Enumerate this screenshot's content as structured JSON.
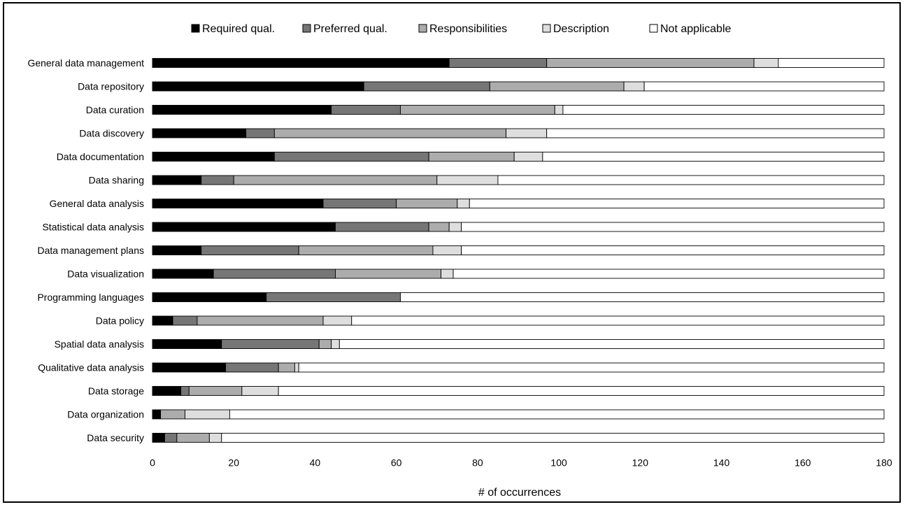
{
  "chart_data": {
    "type": "bar",
    "orientation": "horizontal",
    "stacked": true,
    "categories": [
      "General data management",
      "Data repository",
      "Data curation",
      "Data discovery",
      "Data documentation",
      "Data sharing",
      "General data analysis",
      "Statistical data analysis",
      "Data management plans",
      "Data visualization",
      "Programming languages",
      "Data policy",
      "Spatial data analysis",
      "Qualitative data analysis",
      "Data storage",
      "Data organization",
      "Data security"
    ],
    "series": [
      {
        "name": "Required qual.",
        "color": "#000000",
        "values": [
          73,
          52,
          44,
          23,
          30,
          12,
          42,
          45,
          12,
          15,
          28,
          5,
          17,
          18,
          7,
          2,
          3
        ]
      },
      {
        "name": "Preferred qual.",
        "color": "#767676",
        "values": [
          24,
          31,
          17,
          7,
          38,
          8,
          18,
          23,
          24,
          30,
          33,
          6,
          24,
          13,
          2,
          0,
          3
        ]
      },
      {
        "name": "Responsibilities",
        "color": "#acacac",
        "values": [
          51,
          33,
          38,
          57,
          21,
          50,
          15,
          5,
          33,
          26,
          0,
          31,
          3,
          4,
          13,
          6,
          8
        ]
      },
      {
        "name": "Description",
        "color": "#dedede",
        "values": [
          6,
          5,
          2,
          10,
          7,
          15,
          3,
          3,
          7,
          3,
          0,
          7,
          2,
          1,
          9,
          11,
          3
        ]
      },
      {
        "name": "Not applicable",
        "color": "#ffffff",
        "values": [
          26,
          59,
          79,
          83,
          84,
          95,
          102,
          104,
          104,
          106,
          119,
          131,
          134,
          144,
          149,
          161,
          163
        ]
      }
    ],
    "xlabel": "# of occurrences",
    "ylabel": "",
    "xlim": [
      0,
      180
    ],
    "xticks": [
      0,
      20,
      40,
      60,
      80,
      100,
      120,
      140,
      160,
      180
    ],
    "grid": false,
    "legend_position": "top"
  }
}
